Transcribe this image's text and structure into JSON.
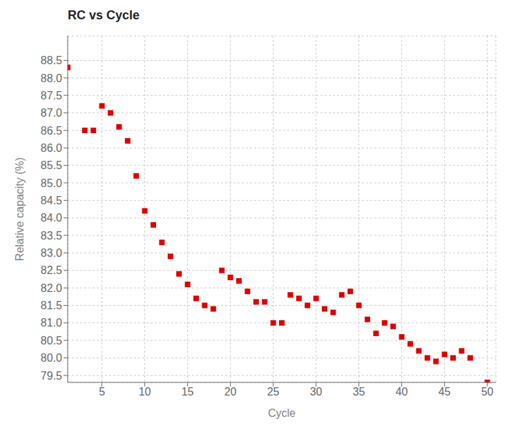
{
  "chart_data": {
    "type": "scatter",
    "title": "RC vs Cycle",
    "xlabel": "Cycle",
    "ylabel": "Relative capacity (%)",
    "x": [
      1,
      3,
      4,
      5,
      6,
      7,
      8,
      9,
      10,
      11,
      12,
      13,
      14,
      15,
      16,
      17,
      18,
      19,
      20,
      21,
      22,
      23,
      24,
      25,
      26,
      27,
      28,
      29,
      30,
      31,
      32,
      33,
      34,
      35,
      36,
      37,
      38,
      39,
      40,
      41,
      42,
      43,
      44,
      45,
      46,
      47,
      48,
      50
    ],
    "values": [
      88.3,
      86.5,
      86.5,
      87.2,
      87.0,
      86.6,
      86.2,
      85.2,
      84.2,
      83.8,
      83.3,
      82.9,
      82.4,
      82.1,
      81.7,
      81.5,
      81.4,
      82.5,
      82.3,
      82.2,
      81.9,
      81.6,
      81.6,
      81.0,
      81.0,
      81.8,
      81.7,
      81.5,
      81.7,
      81.4,
      81.3,
      81.8,
      81.9,
      81.5,
      81.1,
      80.7,
      81.0,
      80.9,
      80.6,
      80.4,
      80.2,
      80.0,
      79.9,
      80.1,
      80.0,
      80.2,
      80.0,
      79.3
    ],
    "color": "#dd0000",
    "marker": "square",
    "xlim": [
      1,
      51
    ],
    "ylim": [
      79.3,
      89.2
    ],
    "xticks": [
      5,
      10,
      15,
      20,
      25,
      30,
      35,
      40,
      45,
      50
    ],
    "yticks": [
      79.5,
      {
        "value": 80,
        "label": "80.0"
      },
      80.5,
      {
        "value": 81,
        "label": "81.0"
      },
      81.5,
      {
        "value": 82,
        "label": "82.0"
      },
      82.5,
      {
        "value": 83,
        "label": "83.0"
      },
      83.5,
      {
        "value": 84,
        "label": "84.0"
      },
      84.5,
      {
        "value": 85,
        "label": "85.0"
      },
      85.5,
      {
        "value": 86,
        "label": "86.0"
      },
      86.5,
      {
        "value": 87,
        "label": "87.0"
      },
      87.5,
      {
        "value": 88,
        "label": "88.0"
      },
      88.5
    ],
    "grid": true
  }
}
